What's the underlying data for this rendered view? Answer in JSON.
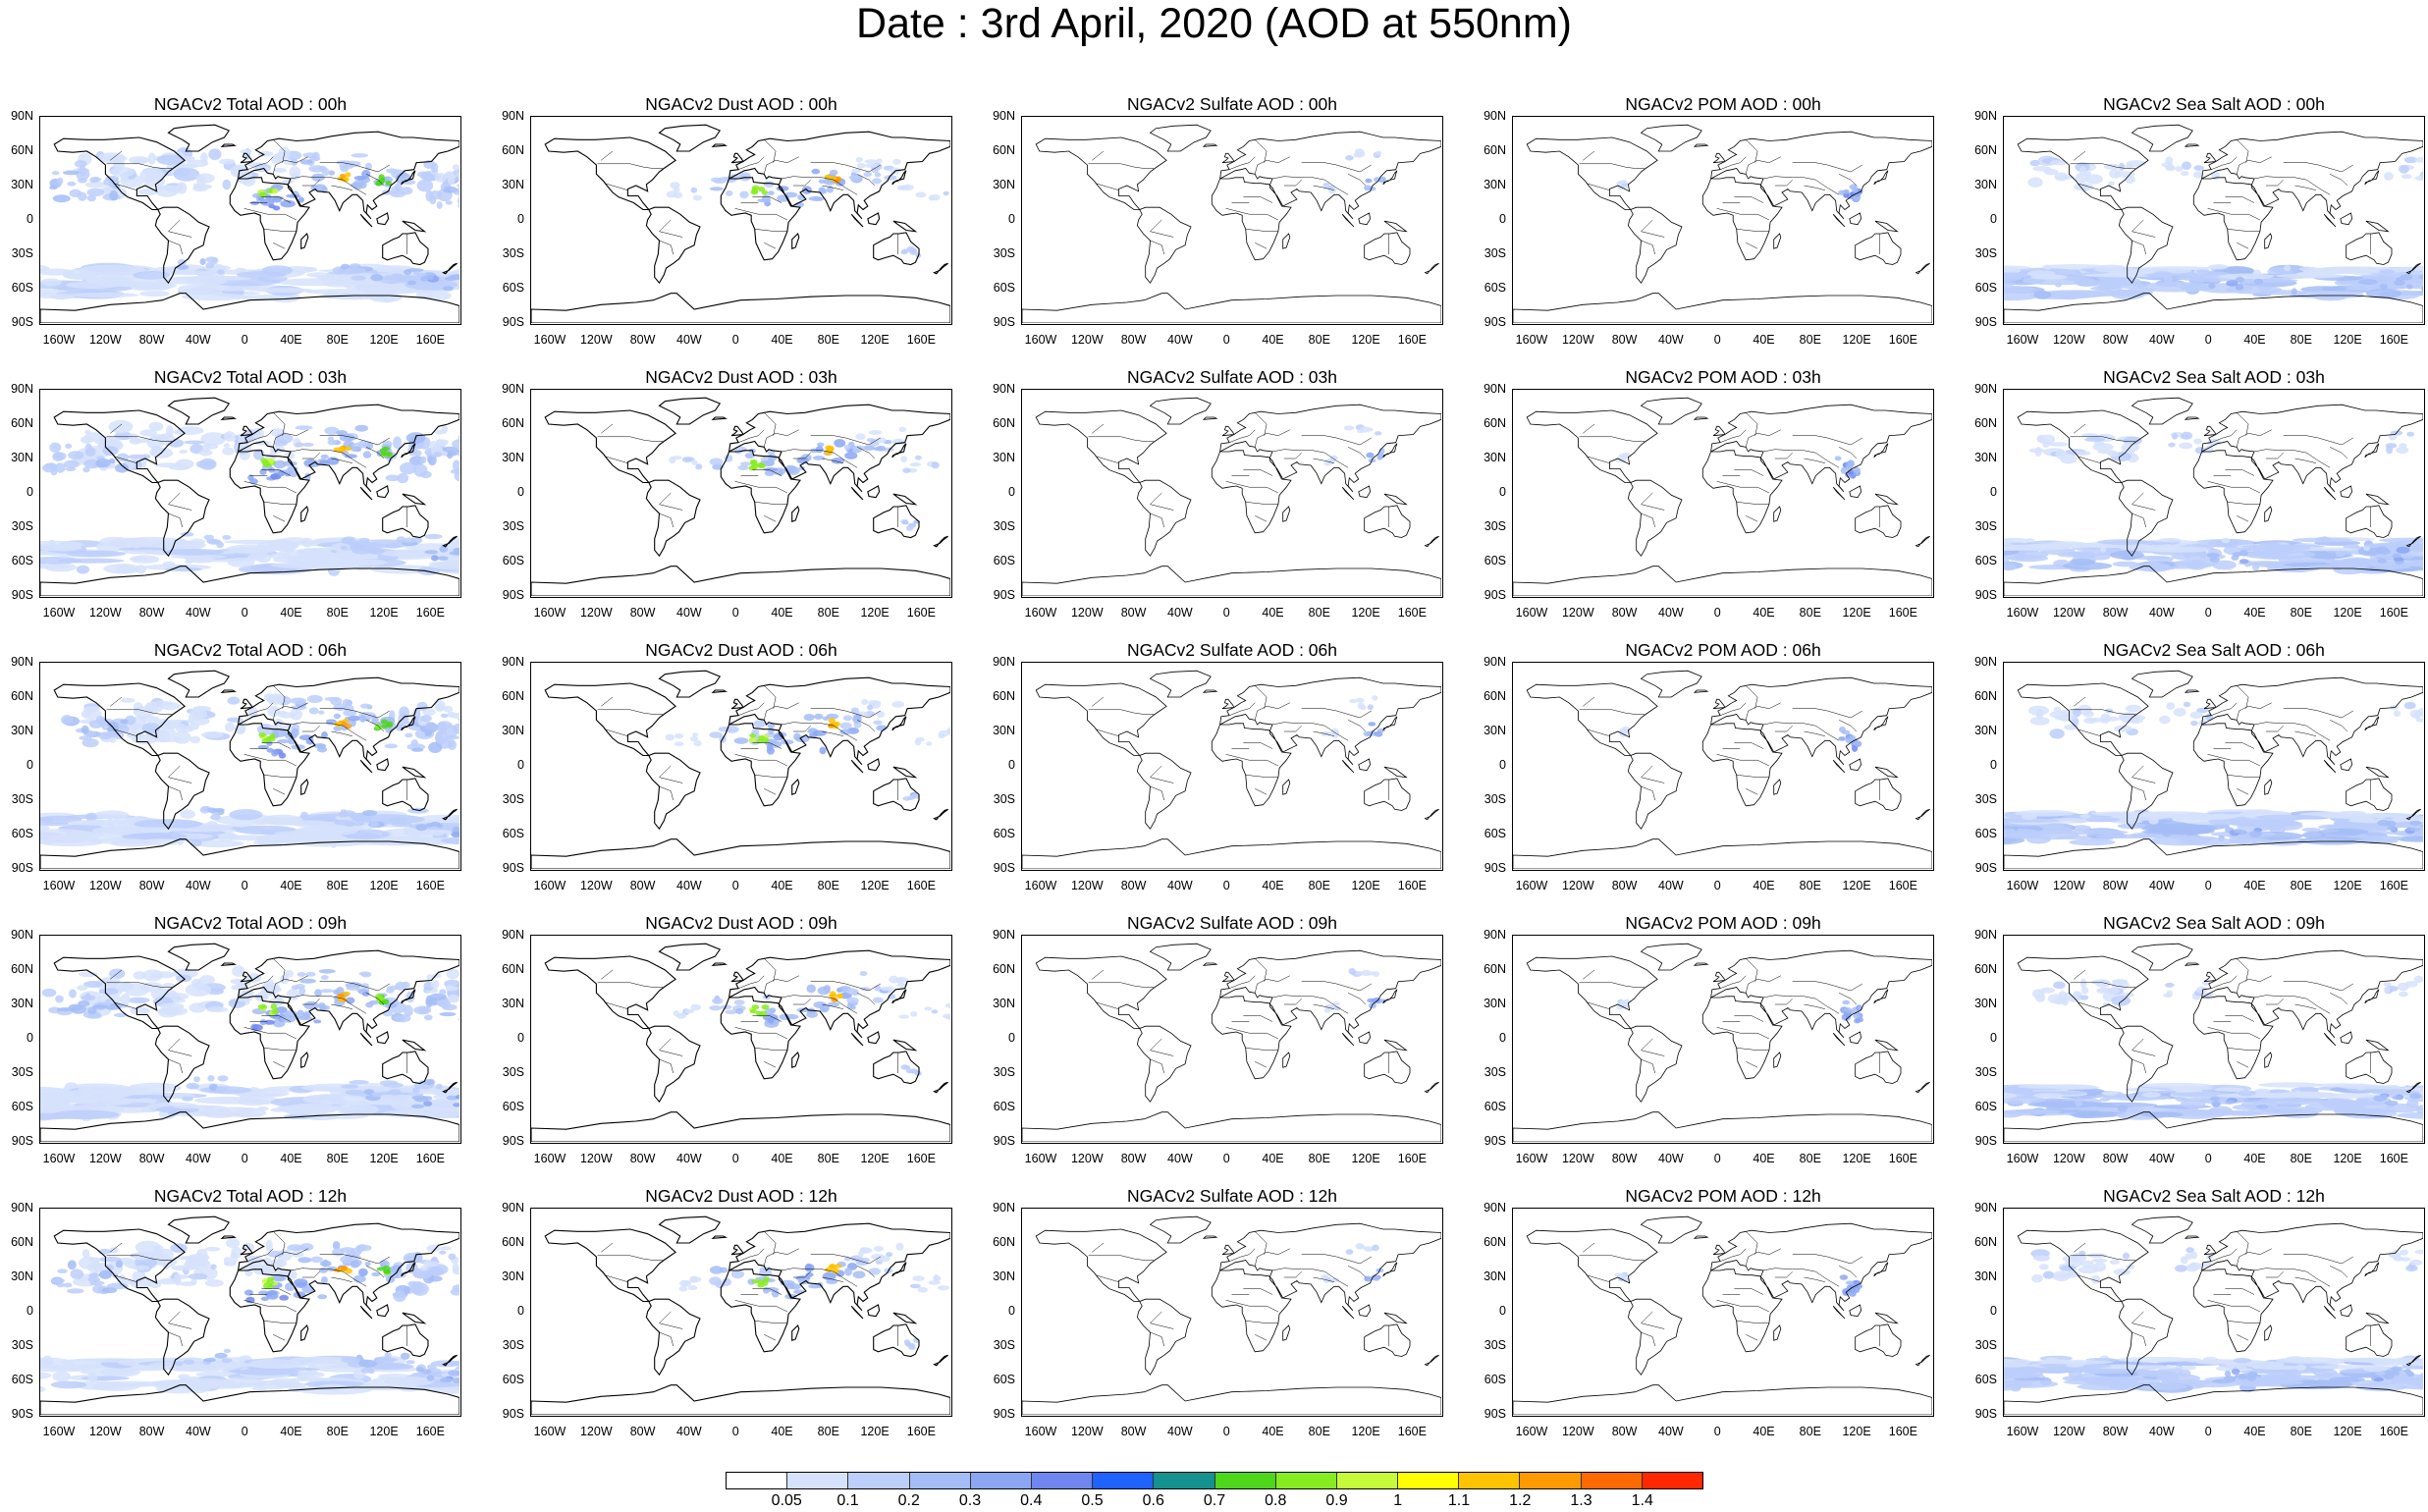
{
  "title": "Date : 3rd April, 2020 (AOD at 550nm)",
  "lat_ticks": [
    "90N",
    "60N",
    "30N",
    "0",
    "30S",
    "60S",
    "90S"
  ],
  "lon_ticks": [
    "160W",
    "120W",
    "80W",
    "40W",
    "0",
    "40E",
    "80E",
    "120E",
    "160E"
  ],
  "colorbar": {
    "labels": [
      "0.05",
      "0.1",
      "0.2",
      "0.3",
      "0.4",
      "0.5",
      "0.6",
      "0.7",
      "0.8",
      "0.9",
      "1",
      "1.1",
      "1.2",
      "1.3",
      "1.4"
    ],
    "colors": [
      "#ffffff",
      "#d6e2fb",
      "#bccefa",
      "#a4bdf6",
      "#8ba6f3",
      "#6f86f0",
      "#1e62ff",
      "#13928f",
      "#4ed61a",
      "#86ec20",
      "#c6fb3a",
      "#ffff00",
      "#ffc300",
      "#ff9a00",
      "#ff6a00",
      "#ff2800"
    ]
  },
  "panels": [
    [
      {
        "title": "NGACv2 Total AOD : 00h",
        "species": "total"
      },
      {
        "title": "NGACv2 Dust AOD : 00h",
        "species": "dust"
      },
      {
        "title": "NGACv2 Sulfate AOD : 00h",
        "species": "sulfate"
      },
      {
        "title": "NGACv2 POM AOD : 00h",
        "species": "pom"
      },
      {
        "title": "NGACv2 Sea Salt AOD : 00h",
        "species": "seasalt"
      }
    ],
    [
      {
        "title": "NGACv2 Total AOD : 03h",
        "species": "total"
      },
      {
        "title": "NGACv2 Dust AOD : 03h",
        "species": "dust"
      },
      {
        "title": "NGACv2 Sulfate AOD : 03h",
        "species": "sulfate"
      },
      {
        "title": "NGACv2 POM AOD : 03h",
        "species": "pom"
      },
      {
        "title": "NGACv2 Sea Salt AOD : 03h",
        "species": "seasalt"
      }
    ],
    [
      {
        "title": "NGACv2 Total AOD : 06h",
        "species": "total"
      },
      {
        "title": "NGACv2 Dust AOD : 06h",
        "species": "dust"
      },
      {
        "title": "NGACv2 Sulfate AOD : 06h",
        "species": "sulfate"
      },
      {
        "title": "NGACv2 POM AOD : 06h",
        "species": "pom"
      },
      {
        "title": "NGACv2 Sea Salt AOD : 06h",
        "species": "seasalt"
      }
    ],
    [
      {
        "title": "NGACv2 Total AOD : 09h",
        "species": "total"
      },
      {
        "title": "NGACv2 Dust AOD : 09h",
        "species": "dust"
      },
      {
        "title": "NGACv2 Sulfate AOD : 09h",
        "species": "sulfate"
      },
      {
        "title": "NGACv2 POM AOD : 09h",
        "species": "pom"
      },
      {
        "title": "NGACv2 Sea Salt  AOD : 09h",
        "species": "seasalt"
      }
    ],
    [
      {
        "title": "NGACv2 Total AOD  : 12h",
        "species": "total"
      },
      {
        "title": "NGACv2 Dust AOD : 12h",
        "species": "dust"
      },
      {
        "title": "NGACv2 Sulfate AOD : 12h",
        "species": "sulfate"
      },
      {
        "title": "NGACv2 POM  AOD : 12h",
        "species": "pom"
      },
      {
        "title": "NGACv2 Sea Salt AOD : 12h",
        "species": "seasalt"
      }
    ]
  ]
}
